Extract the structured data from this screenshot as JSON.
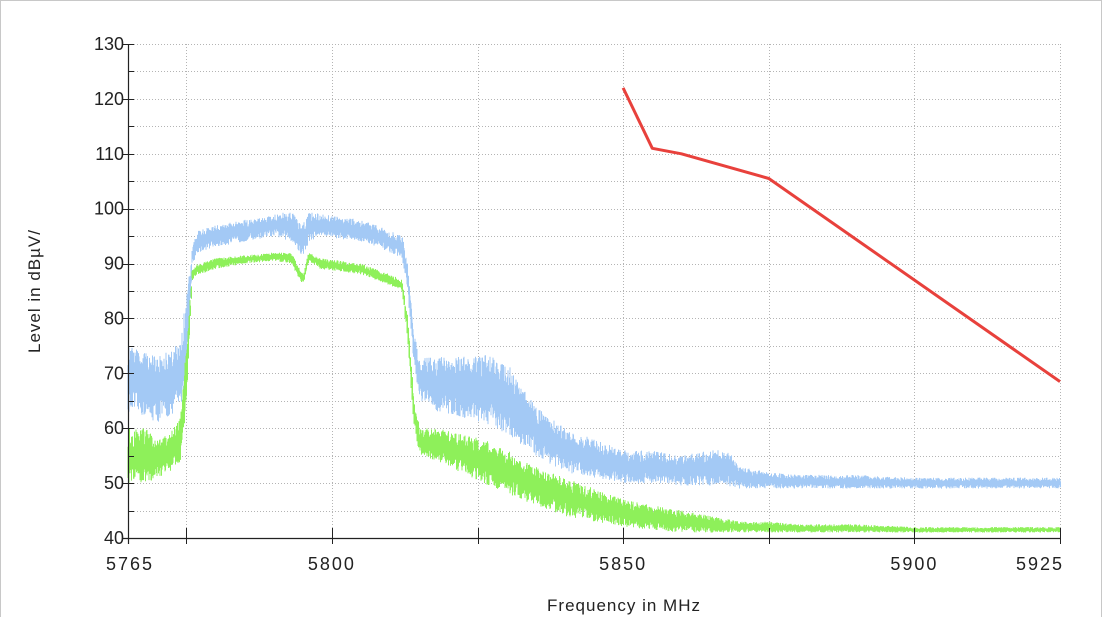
{
  "chart_data": {
    "type": "line",
    "title": "",
    "xlabel": "Frequency in MHz",
    "ylabel": "Level in dBµV/",
    "xlim": [
      5765,
      5925
    ],
    "ylim": [
      40,
      130
    ],
    "x_ticks": [
      5765,
      5800,
      5850,
      5900,
      5925
    ],
    "x_tick_labels": [
      "5765",
      "5800",
      "5850",
      "5900",
      "5925"
    ],
    "x_minor_ticks": [
      5775,
      5825,
      5875
    ],
    "y_ticks": [
      40,
      50,
      60,
      70,
      80,
      90,
      100,
      110,
      120,
      130
    ],
    "y_tick_labels": [
      "40",
      "50",
      "60",
      "70",
      "80",
      "90",
      "100",
      "110",
      "120",
      "130"
    ],
    "grid": true,
    "legend": "none",
    "series": [
      {
        "color": "#a3c9f5",
        "style": "noisy-band",
        "x": [
          5765,
          5768,
          5770,
          5772,
          5774,
          5775,
          5776,
          5777,
          5780,
          5785,
          5790,
          5793,
          5795,
          5796,
          5798,
          5805,
          5810,
          5812,
          5813,
          5814,
          5815,
          5818,
          5822,
          5826,
          5830,
          5835,
          5840,
          5845,
          5850,
          5855,
          5860,
          5865,
          5868,
          5870,
          5875,
          5880,
          5890,
          5900,
          5910,
          5925
        ],
        "upper": [
          75,
          74,
          73,
          74,
          76,
          84,
          93,
          96,
          97,
          98,
          99,
          99.5,
          97,
          99.5,
          99,
          98,
          96,
          95,
          90,
          78,
          73,
          73,
          73,
          73.5,
          72,
          64,
          60,
          58,
          56,
          56,
          55,
          56,
          56,
          53,
          52,
          51.5,
          51.5,
          51,
          51,
          51
        ],
        "lower": [
          63,
          62,
          61,
          62,
          64,
          70,
          90,
          92,
          93,
          94,
          95,
          94,
          91,
          94,
          95,
          94,
          92,
          91,
          85,
          72,
          65,
          63,
          62,
          61,
          59,
          55,
          52,
          51,
          50,
          50,
          49.5,
          49.5,
          49.5,
          49,
          49,
          49,
          49,
          49,
          49,
          49
        ]
      },
      {
        "color": "#8ef05a",
        "style": "noisy-band",
        "x": [
          5765,
          5768,
          5770,
          5772,
          5774,
          5775,
          5776,
          5777,
          5780,
          5785,
          5790,
          5793,
          5795,
          5796,
          5798,
          5805,
          5810,
          5812,
          5813,
          5814,
          5815,
          5818,
          5822,
          5826,
          5830,
          5835,
          5840,
          5845,
          5850,
          5855,
          5860,
          5865,
          5870,
          5875,
          5880,
          5890,
          5900,
          5910,
          5925
        ],
        "upper": [
          60,
          60,
          58,
          59,
          62,
          75,
          89,
          90,
          91,
          91.5,
          92,
          92,
          88,
          92,
          91,
          90,
          88,
          87,
          80,
          66,
          60,
          60,
          59,
          58,
          56,
          53,
          51,
          49,
          47,
          46,
          45,
          44,
          43,
          43,
          42.5,
          42.5,
          42,
          42,
          42
        ],
        "lower": [
          50,
          50,
          51,
          52,
          54,
          65,
          87,
          88,
          89,
          90,
          90.5,
          90,
          86,
          90.5,
          89,
          88,
          86,
          85,
          76,
          61,
          55,
          54,
          52,
          50,
          48,
          46,
          44,
          43,
          42,
          41.5,
          41,
          41,
          41,
          41,
          41,
          41,
          41,
          41,
          41
        ]
      },
      {
        "color": "#e8413c",
        "style": "line",
        "x": [
          5850,
          5855,
          5860,
          5875,
          5925
        ],
        "y": [
          122,
          111,
          110,
          105.5,
          68.5
        ]
      }
    ]
  }
}
